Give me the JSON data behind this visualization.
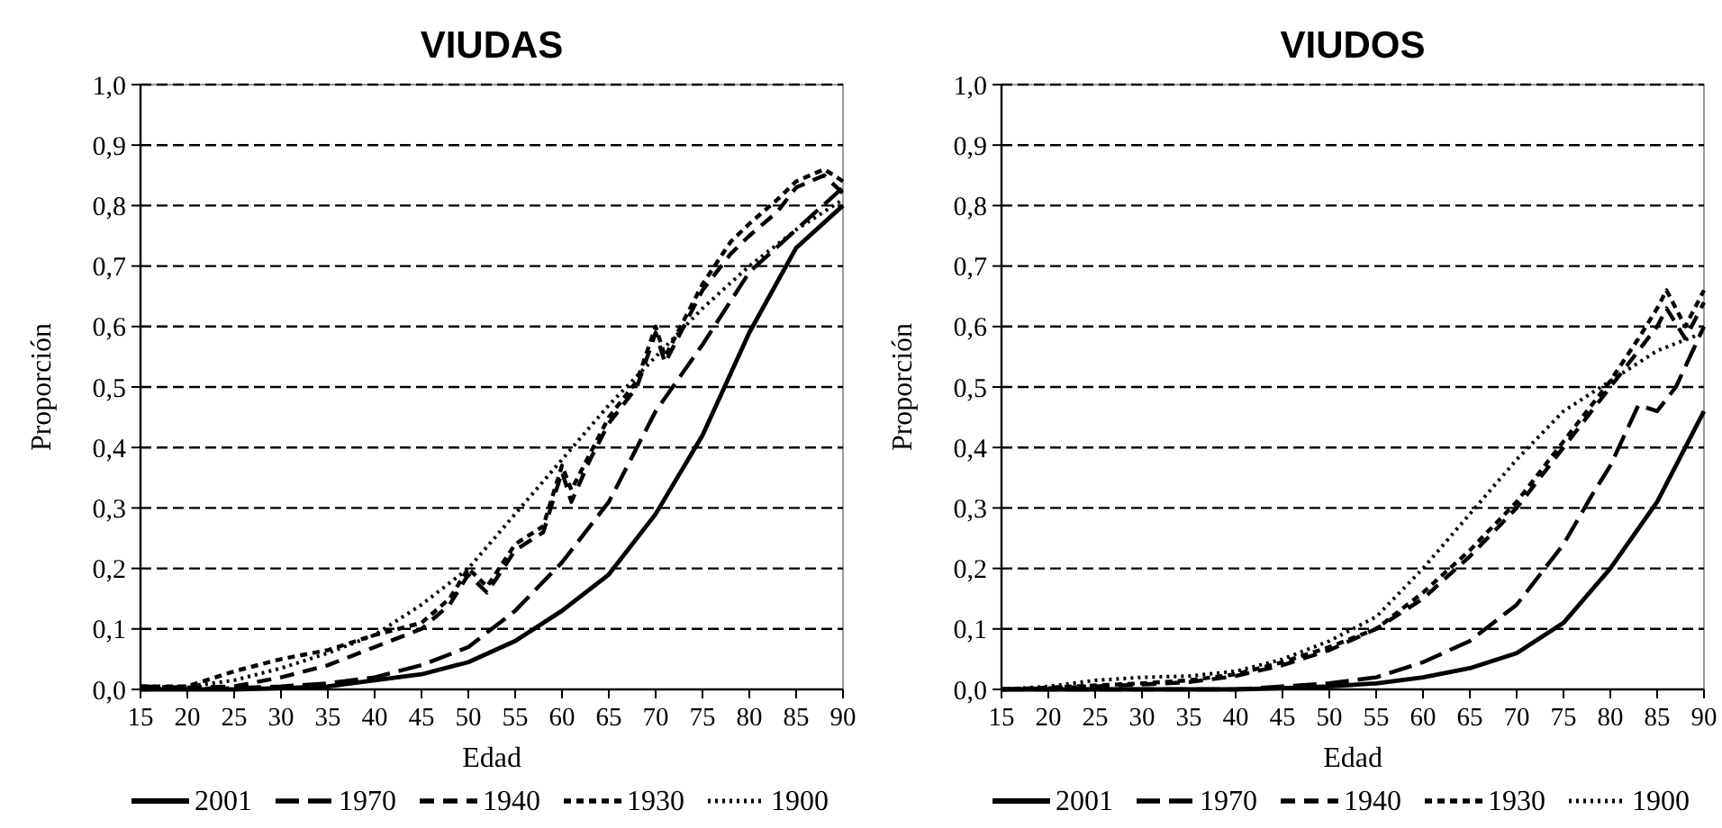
{
  "chart_data": [
    {
      "type": "line",
      "title": "VIUDAS",
      "xlabel": "Edad",
      "ylabel": "Proporción",
      "grid": "y",
      "legend": "bottom",
      "xlim": [
        15,
        90
      ],
      "xticks": [
        15,
        20,
        25,
        30,
        35,
        40,
        45,
        50,
        55,
        60,
        65,
        70,
        75,
        80,
        85,
        90
      ],
      "ylim": [
        0,
        1
      ],
      "yticks": [
        {
          "value": 0,
          "label": "0,0"
        },
        {
          "value": 0.1,
          "label": "0,1"
        },
        {
          "value": 0.2,
          "label": "0,2"
        },
        {
          "value": 0.3,
          "label": "0,3"
        },
        {
          "value": 0.4,
          "label": "0,4"
        },
        {
          "value": 0.5,
          "label": "0,5"
        },
        {
          "value": 0.6,
          "label": "0,6"
        },
        {
          "value": 0.7,
          "label": "0,7"
        },
        {
          "value": 0.8,
          "label": "0,8"
        },
        {
          "value": 0.9,
          "label": "0,9"
        },
        {
          "value": 1,
          "label": "1,0"
        }
      ],
      "series": [
        {
          "name": "2001",
          "color": "#000000",
          "line_style": "solid",
          "x": [
            15,
            25,
            30,
            35,
            40,
            45,
            50,
            55,
            60,
            65,
            70,
            75,
            80,
            85,
            90
          ],
          "values": [
            0,
            0,
            0.002,
            0.005,
            0.015,
            0.025,
            0.045,
            0.08,
            0.13,
            0.19,
            0.29,
            0.42,
            0.59,
            0.73,
            0.8
          ]
        },
        {
          "name": "1970",
          "color": "#000000",
          "line_style": "dashed",
          "x": [
            15,
            25,
            30,
            35,
            40,
            45,
            50,
            55,
            60,
            65,
            70,
            75,
            80,
            85,
            90
          ],
          "values": [
            0,
            0.002,
            0.005,
            0.01,
            0.02,
            0.04,
            0.07,
            0.13,
            0.21,
            0.31,
            0.46,
            0.57,
            0.69,
            0.76,
            0.83
          ]
        },
        {
          "name": "1940",
          "color": "#000000",
          "line_style": "dashed",
          "x": [
            15,
            20,
            25,
            30,
            35,
            40,
            45,
            48,
            50,
            52,
            55,
            58,
            60,
            61,
            63,
            65,
            68,
            70,
            71,
            75,
            78,
            80,
            83,
            85,
            88,
            90
          ],
          "values": [
            0.005,
            0.003,
            0.005,
            0.02,
            0.04,
            0.07,
            0.1,
            0.14,
            0.19,
            0.16,
            0.23,
            0.26,
            0.36,
            0.31,
            0.38,
            0.44,
            0.5,
            0.59,
            0.54,
            0.66,
            0.72,
            0.75,
            0.79,
            0.83,
            0.85,
            0.82
          ]
        },
        {
          "name": "1930",
          "color": "#000000",
          "line_style": "dashed",
          "x": [
            15,
            20,
            25,
            30,
            35,
            40,
            45,
            48,
            50,
            52,
            55,
            58,
            60,
            61,
            63,
            65,
            68,
            70,
            71,
            75,
            78,
            80,
            83,
            85,
            88,
            90
          ],
          "values": [
            0.005,
            0.005,
            0.03,
            0.05,
            0.065,
            0.09,
            0.11,
            0.15,
            0.2,
            0.17,
            0.24,
            0.27,
            0.37,
            0.33,
            0.39,
            0.45,
            0.51,
            0.6,
            0.55,
            0.67,
            0.74,
            0.77,
            0.81,
            0.84,
            0.86,
            0.84
          ]
        },
        {
          "name": "1900",
          "color": "#000000",
          "line_style": "dotted",
          "x": [
            15,
            20,
            25,
            30,
            35,
            40,
            45,
            50,
            55,
            60,
            65,
            70,
            75,
            80,
            85,
            90
          ],
          "values": [
            0.003,
            0.005,
            0.015,
            0.035,
            0.06,
            0.09,
            0.14,
            0.2,
            0.29,
            0.38,
            0.47,
            0.55,
            0.63,
            0.7,
            0.76,
            0.81
          ]
        }
      ]
    },
    {
      "type": "line",
      "title": "VIUDOS",
      "xlabel": "Edad",
      "ylabel": "Proporción",
      "grid": "y",
      "legend": "bottom",
      "xlim": [
        15,
        90
      ],
      "xticks": [
        15,
        20,
        25,
        30,
        35,
        40,
        45,
        50,
        55,
        60,
        65,
        70,
        75,
        80,
        85,
        90
      ],
      "ylim": [
        0,
        1
      ],
      "yticks": [
        {
          "value": 0,
          "label": "0,0"
        },
        {
          "value": 0.1,
          "label": "0,1"
        },
        {
          "value": 0.2,
          "label": "0,2"
        },
        {
          "value": 0.3,
          "label": "0,3"
        },
        {
          "value": 0.4,
          "label": "0,4"
        },
        {
          "value": 0.5,
          "label": "0,5"
        },
        {
          "value": 0.6,
          "label": "0,6"
        },
        {
          "value": 0.7,
          "label": "0,7"
        },
        {
          "value": 0.8,
          "label": "0,8"
        },
        {
          "value": 0.9,
          "label": "0,9"
        },
        {
          "value": 1,
          "label": "1,0"
        }
      ],
      "series": [
        {
          "name": "2001",
          "color": "#000000",
          "line_style": "solid",
          "x": [
            15,
            40,
            45,
            50,
            55,
            60,
            65,
            70,
            75,
            80,
            85,
            90
          ],
          "values": [
            0,
            0,
            0.002,
            0.005,
            0.01,
            0.02,
            0.035,
            0.06,
            0.11,
            0.2,
            0.31,
            0.46
          ]
        },
        {
          "name": "1970",
          "color": "#000000",
          "line_style": "dashed",
          "x": [
            15,
            40,
            45,
            50,
            55,
            60,
            65,
            70,
            75,
            78,
            80,
            83,
            85,
            87,
            90
          ],
          "values": [
            0,
            0,
            0.005,
            0.01,
            0.02,
            0.045,
            0.08,
            0.14,
            0.24,
            0.32,
            0.37,
            0.47,
            0.46,
            0.5,
            0.6
          ]
        },
        {
          "name": "1940",
          "color": "#000000",
          "line_style": "dashed",
          "x": [
            15,
            20,
            30,
            35,
            40,
            45,
            50,
            55,
            60,
            65,
            70,
            75,
            80,
            83,
            85,
            86,
            88,
            90
          ],
          "values": [
            0,
            0.002,
            0.008,
            0.012,
            0.022,
            0.04,
            0.065,
            0.1,
            0.15,
            0.22,
            0.3,
            0.4,
            0.5,
            0.56,
            0.6,
            0.63,
            0.58,
            0.64
          ]
        },
        {
          "name": "1930",
          "color": "#000000",
          "line_style": "dashed",
          "x": [
            15,
            20,
            30,
            35,
            40,
            45,
            50,
            55,
            60,
            65,
            70,
            75,
            80,
            83,
            85,
            86,
            88,
            90
          ],
          "values": [
            0,
            0.003,
            0.01,
            0.015,
            0.025,
            0.045,
            0.07,
            0.1,
            0.16,
            0.23,
            0.31,
            0.41,
            0.51,
            0.58,
            0.63,
            0.66,
            0.6,
            0.66
          ]
        },
        {
          "name": "1900",
          "color": "#000000",
          "line_style": "dotted",
          "x": [
            15,
            20,
            25,
            30,
            35,
            40,
            45,
            50,
            55,
            60,
            65,
            70,
            75,
            80,
            85,
            90
          ],
          "values": [
            0,
            0.005,
            0.015,
            0.02,
            0.022,
            0.03,
            0.05,
            0.08,
            0.12,
            0.2,
            0.29,
            0.38,
            0.46,
            0.51,
            0.56,
            0.59
          ]
        }
      ]
    }
  ]
}
